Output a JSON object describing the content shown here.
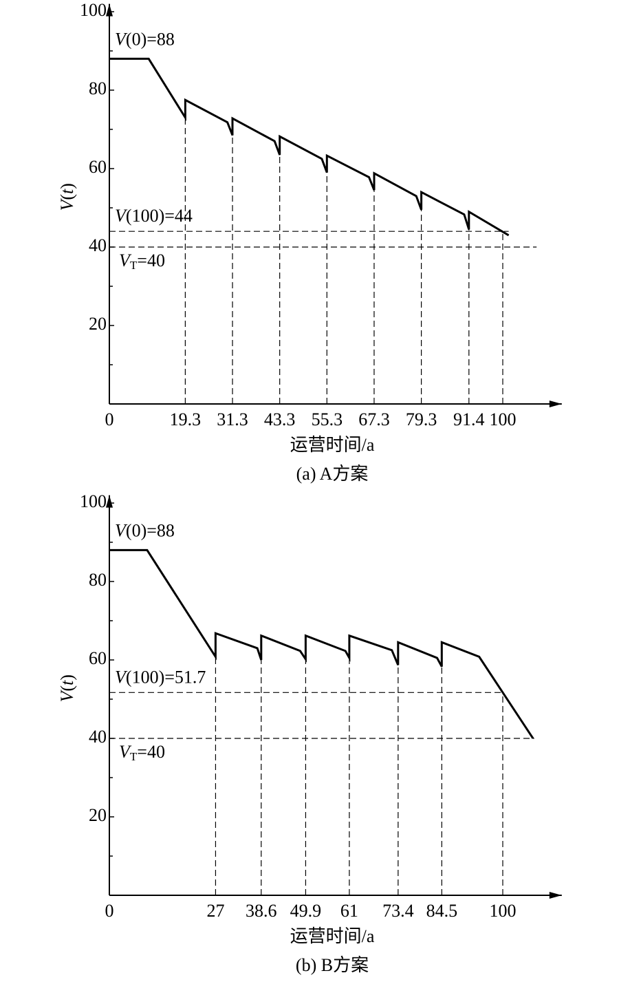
{
  "chart_data": [
    {
      "type": "line",
      "caption": "(a) A方案",
      "xlabel": "运营时间/a",
      "ylabel": "V(t)",
      "color": "#000000",
      "xlim": [
        0,
        115
      ],
      "ylim": [
        0,
        102
      ],
      "xticks": [
        0,
        19.3,
        31.3,
        43.3,
        55.3,
        67.3,
        79.3,
        91.4,
        100
      ],
      "yticks": [
        20,
        40,
        60,
        80,
        100
      ],
      "yminor": [
        10,
        30,
        50,
        70,
        90
      ],
      "x": [
        0,
        10,
        19.3,
        19.3,
        30,
        31.3,
        31.3,
        42,
        43.3,
        43.3,
        54,
        55.3,
        55.3,
        66,
        67.3,
        67.3,
        78,
        79.3,
        79.3,
        90.2,
        91.4,
        91.4,
        101.5
      ],
      "values": [
        88,
        88,
        73,
        77.5,
        71.8,
        68.5,
        72.8,
        67,
        63.5,
        68.2,
        62.5,
        59,
        63.3,
        57.8,
        54.5,
        58.8,
        53,
        49.5,
        54,
        48.3,
        44.5,
        49,
        43
      ],
      "start_label": "V(0)=88",
      "hlines": [
        {
          "value": 44,
          "end": 101.5,
          "label": "V(100)=44"
        },
        {
          "value": 40,
          "end": 108.6,
          "label": "VT=40"
        }
      ]
    },
    {
      "type": "line",
      "caption": "(b) B方案",
      "xlabel": "运营时间/a",
      "ylabel": "V(t)",
      "color": "#000000",
      "xlim": [
        0,
        115
      ],
      "ylim": [
        0,
        102
      ],
      "xticks": [
        0,
        27,
        38.6,
        49.9,
        61,
        73.4,
        84.5,
        100
      ],
      "yticks": [
        20,
        40,
        60,
        80,
        100
      ],
      "yminor": [
        10,
        30,
        50,
        70,
        90
      ],
      "x": [
        0,
        9.6,
        27,
        27,
        37.6,
        38.6,
        38.6,
        48.5,
        49.9,
        49.9,
        60,
        61,
        61,
        71.8,
        73.4,
        73.4,
        83.3,
        84.5,
        84.5,
        94,
        107.7
      ],
      "values": [
        88,
        88,
        60.8,
        66.8,
        63,
        60,
        66.2,
        62.3,
        60.2,
        66.2,
        62.3,
        60.5,
        66.2,
        62.5,
        58.7,
        64.5,
        60.5,
        58.3,
        64.5,
        60.8,
        40
      ],
      "start_label": "V(0)=88",
      "hlines": [
        {
          "value": 51.7,
          "end": 100,
          "label": "V(100)=51.7"
        },
        {
          "value": 40,
          "end": 108,
          "label": "VT=40"
        }
      ]
    }
  ]
}
